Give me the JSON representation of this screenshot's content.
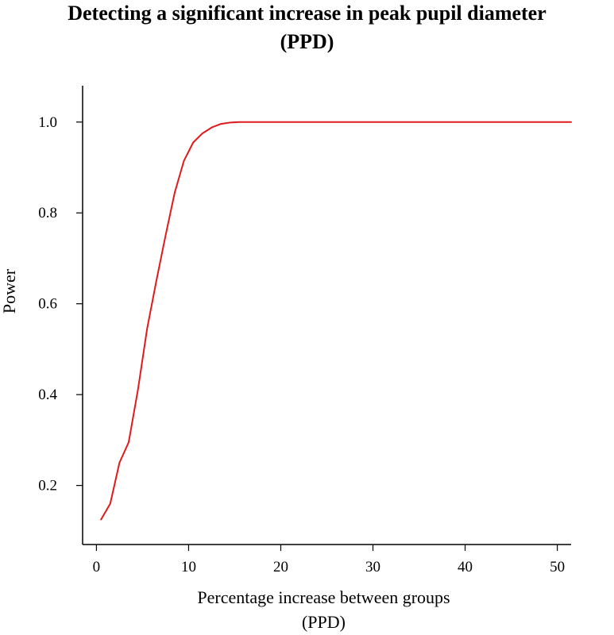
{
  "chart_data": {
    "type": "line",
    "title": [
      "Detecting a significant increase in peak pupil diameter",
      "(PPD)"
    ],
    "xlabel": [
      "Percentage increase between groups",
      "(PPD)"
    ],
    "ylabel": "Power",
    "xlim": [
      -1.5,
      51.5
    ],
    "ylim": [
      0.07,
      1.08
    ],
    "xticks": [
      0,
      10,
      20,
      30,
      40,
      50
    ],
    "yticks": [
      0.2,
      0.4,
      0.6,
      0.8,
      1.0
    ],
    "ytick_labels": [
      "0.2",
      "0.4",
      "0.6",
      "0.8",
      "1.0"
    ],
    "grid": false,
    "series": [
      {
        "color": "#e01a1a",
        "x": [
          0.5,
          1.5,
          2.5,
          3.5,
          4.5,
          5.5,
          6.5,
          7.5,
          8.5,
          9.5,
          10.5,
          11.5,
          12.5,
          13.5,
          14.5,
          15.5,
          20,
          30,
          40,
          51.5
        ],
        "y": [
          0.125,
          0.16,
          0.25,
          0.295,
          0.41,
          0.545,
          0.65,
          0.75,
          0.845,
          0.915,
          0.955,
          0.975,
          0.988,
          0.996,
          0.999,
          1.0,
          1.0,
          1.0,
          1.0,
          1.0
        ]
      }
    ]
  }
}
